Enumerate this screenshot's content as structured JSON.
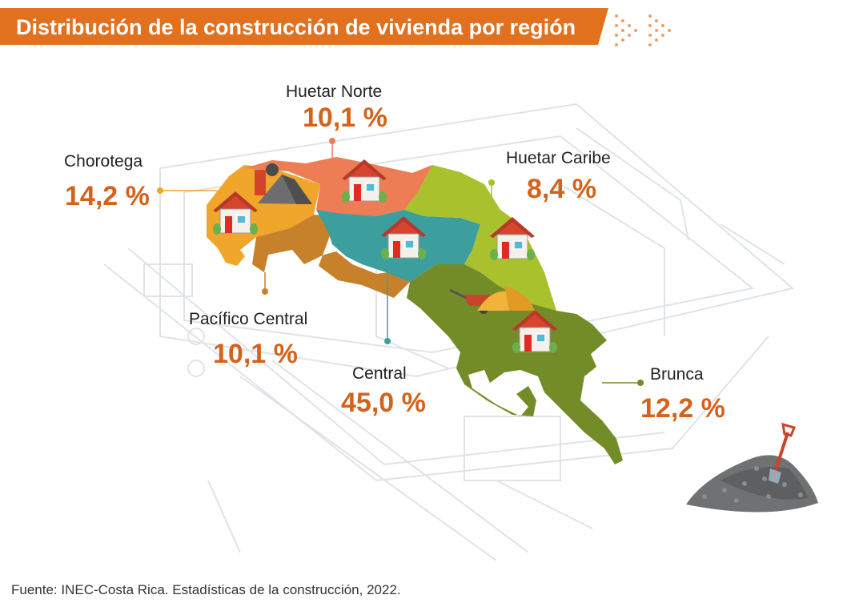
{
  "title": "Distribución de la construcción de vivienda  por región",
  "source": "Fuente: INEC-Costa Rica. Estadísticas de la construcción, 2022.",
  "regions": [
    {
      "name": "Huetar Norte",
      "value": "10,1 %",
      "color": "#ec7d55"
    },
    {
      "name": "Chorotega",
      "value": "14,2 %",
      "color": "#f0a52b"
    },
    {
      "name": "Huetar Caribe",
      "value": "8,4 %",
      "color": "#a8c12c"
    },
    {
      "name": "Pacífico Central",
      "value": "10,1 %",
      "color": "#c7812a"
    },
    {
      "name": "Central",
      "value": "45,0 %",
      "color": "#3d9e9e"
    },
    {
      "name": "Brunca",
      "value": "12,2 %",
      "color": "#738c28"
    }
  ],
  "colors": {
    "accent": "#e1711f",
    "value_text": "#d4621a",
    "blueprint_lines": "#d9dde3"
  },
  "icons": [
    "house-icon",
    "gravel-pile-icon",
    "wheelbarrow-icon",
    "sand-pile-icon",
    "shovel-icon",
    "dotted-arrow-icon"
  ]
}
